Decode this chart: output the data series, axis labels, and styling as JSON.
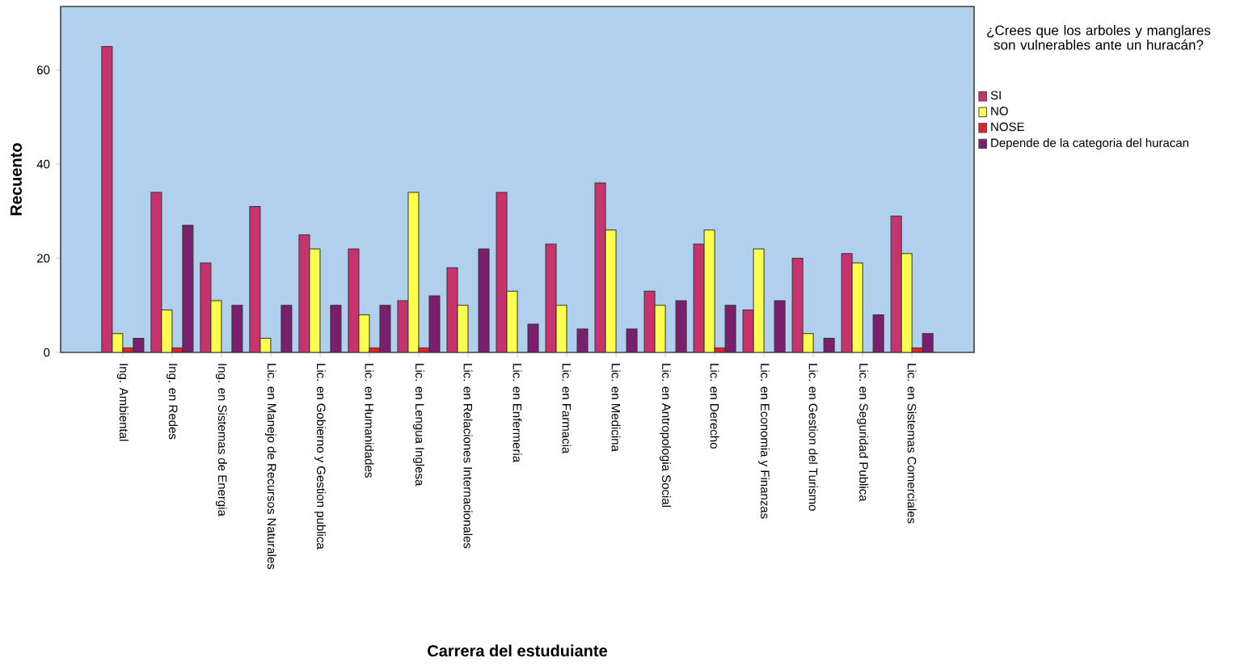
{
  "chart_data": {
    "type": "bar",
    "xlabel": "Carrera del estuduiante",
    "ylabel": "Recuento",
    "legend_title": "¿Crees que los arboles y manglares son vulnerables ante un huracán?",
    "categories": [
      "Ing. Ambiental",
      "Ing. en Redes",
      "Ing. en Sistemas de Energia",
      "Lic. en Manejo de Recursos Naturales",
      "Lic. en Gobierno y Gestion publica",
      "Lic. en Humanidades",
      "Lic. en Lengua Inglesa",
      "Lic. en Relaciones Internacionales",
      "Lic. en Enfermeria",
      "Lic. en Farmacia",
      "Lic. en Medicina",
      "Lic. en Antropologia Social",
      "Lic. en Derecho",
      "Lic. en Economia y Finanzas",
      "Lic. en Gestion del Turismo",
      "Lic. en Seguridad Publica",
      "Lic. en Sistemas Comerciales"
    ],
    "series": [
      {
        "name": "SI",
        "color": "#c8336e",
        "values": [
          65,
          34,
          19,
          31,
          25,
          22,
          11,
          18,
          34,
          23,
          36,
          13,
          23,
          9,
          20,
          21,
          29
        ]
      },
      {
        "name": "NO",
        "color": "#ffff4d",
        "values": [
          4,
          9,
          11,
          3,
          22,
          8,
          34,
          10,
          13,
          10,
          26,
          10,
          26,
          22,
          4,
          19,
          21
        ]
      },
      {
        "name": "NOSE",
        "color": "#e8202a",
        "values": [
          1,
          1,
          null,
          null,
          null,
          1,
          1,
          null,
          null,
          null,
          null,
          null,
          1,
          null,
          null,
          null,
          1
        ]
      },
      {
        "name": "Depende de la categoria del huracan",
        "color": "#7b1e6e",
        "values": [
          3,
          27,
          10,
          10,
          10,
          10,
          12,
          22,
          6,
          5,
          5,
          11,
          10,
          11,
          3,
          8,
          4
        ]
      }
    ],
    "ylim": [
      0,
      73.5
    ],
    "yticks": [
      0,
      20,
      40,
      60
    ],
    "legend": "top right"
  }
}
